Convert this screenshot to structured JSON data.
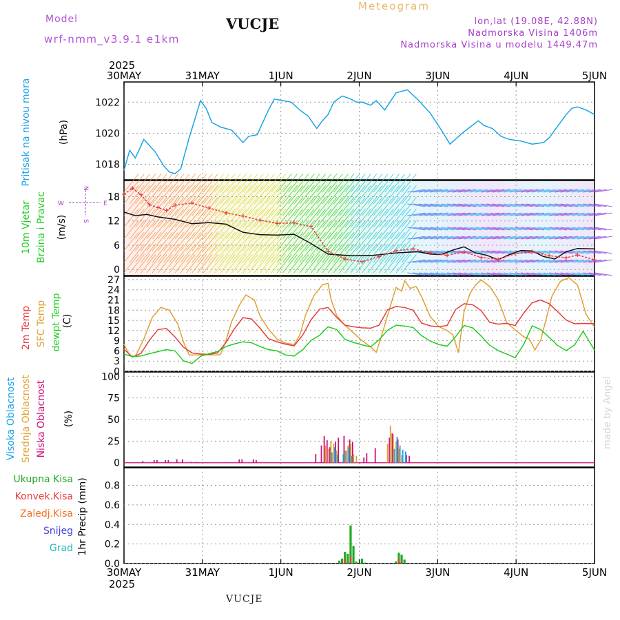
{
  "header": {
    "model_label": "Model",
    "model_version": "wrf-nmm_v3.9.1 e1km",
    "station": "VUCJE",
    "product": "Meteogram",
    "lonlat": "lon,lat (19.08E, 42.88N)",
    "elevation": "Nadmorska Visina 1406m",
    "model_elevation": "Nadmorska Visina u modelu 1449.47m"
  },
  "footer": {
    "station": "VUCJE"
  },
  "credit": "made by Angel",
  "colors": {
    "pressure": "#1aa3e6",
    "temp2m": "#e63c3c",
    "sfc": "#e0a030",
    "dewpt": "#22cc22",
    "high_cloud": "#1aa3e6",
    "mid_cloud": "#e0a030",
    "low_cloud": "#cc1177",
    "total_precip": "#22aa22",
    "conv_precip": "#e63c3c",
    "frozen_precip": "#f07020",
    "snow": "#4444dd",
    "hail": "#22bbbb",
    "wind_speed": "#111111",
    "wind_gust": "#e63c3c"
  },
  "time_axis": {
    "year": "2025",
    "ticks": [
      "30MAY",
      "31MAY",
      "1JUN",
      "2JUN",
      "3JUN",
      "4JUN",
      "5JUN"
    ]
  },
  "chart_data": [
    {
      "type": "line",
      "title": "",
      "ylabel": [
        "Pritisak na nivou mora",
        "(hPa)"
      ],
      "x_range": [
        "2025-05-30 00:00",
        "2025-06-05 00:00"
      ],
      "ylim": [
        1017.0,
        1023.3
      ],
      "yticks": [
        1018,
        1020,
        1022
      ],
      "grid": true,
      "series": [
        {
          "name": "Pritisak na nivou mora",
          "x": [
            0,
            2,
            4,
            7,
            11,
            14,
            16,
            18,
            20,
            23,
            27,
            29,
            31,
            34,
            38,
            42,
            44,
            47,
            51,
            53,
            56,
            59,
            62,
            65,
            68,
            70,
            72,
            74,
            77,
            80,
            82,
            84,
            87,
            89,
            92,
            96,
            100,
            104,
            108,
            112,
            115,
            120,
            125,
            127,
            130,
            133,
            136,
            140,
            144,
            148,
            150,
            154,
            156,
            158,
            160,
            163,
            166
          ],
          "values": [
            1017.6,
            1018.9,
            1018.4,
            1019.6,
            1018.8,
            1017.9,
            1017.5,
            1017.4,
            1017.7,
            1019.7,
            1022.1,
            1021.6,
            1020.7,
            1020.4,
            1020.2,
            1019.4,
            1019.8,
            1019.9,
            1021.5,
            1022.2,
            1022.1,
            1022.0,
            1021.5,
            1021.1,
            1020.3,
            1020.8,
            1021.2,
            1022.0,
            1022.4,
            1022.2,
            1022.0,
            1022.0,
            1021.8,
            1022.1,
            1021.5,
            1022.6,
            1022.8,
            1022.1,
            1021.3,
            1020.2,
            1019.3,
            1020.1,
            1020.8,
            1020.5,
            1020.3,
            1019.8,
            1019.6,
            1019.5,
            1019.3,
            1019.4,
            1019.7,
            1020.7,
            1021.2,
            1021.6,
            1021.7,
            1021.5,
            1021.2
          ]
        }
      ]
    },
    {
      "type": "line",
      "title": "",
      "ylabel": [
        "10m Vjetar",
        "Brzina i Pravac",
        "(m/s)"
      ],
      "compass_labels": [
        "N",
        "W",
        "E",
        "S"
      ],
      "x_range": [
        "2025-05-30 00:00",
        "2025-06-05 00:00"
      ],
      "ylim": [
        -1.5,
        22
      ],
      "yticks": [
        0,
        6,
        12,
        18
      ],
      "grid": true,
      "series": [
        {
          "name": "wind speed",
          "x": [
            0,
            4,
            8,
            12,
            18,
            24,
            30,
            36,
            42,
            48,
            54,
            60,
            66,
            72,
            80,
            88,
            96,
            104,
            108,
            112,
            116,
            120,
            124,
            128,
            132,
            136,
            140,
            144,
            148,
            152,
            156,
            160,
            166
          ],
          "values": [
            14.2,
            13.3,
            13.6,
            13.0,
            12.4,
            11.3,
            11.6,
            11.2,
            9.2,
            8.6,
            8.5,
            8.7,
            6.4,
            3.8,
            3.4,
            3.5,
            4.1,
            4.4,
            3.8,
            3.7,
            4.8,
            5.6,
            4.1,
            3.5,
            2.4,
            3.7,
            4.7,
            4.6,
            3.2,
            2.6,
            4.4,
            5.2,
            5.1
          ]
        },
        {
          "name": "wind gust",
          "x": [
            0,
            3,
            6,
            9,
            12,
            15,
            18,
            24,
            30,
            36,
            42,
            48,
            54,
            60,
            66,
            72,
            78,
            84,
            90,
            96,
            102,
            108,
            114,
            120,
            126,
            132,
            138,
            144,
            150,
            156,
            160,
            166
          ],
          "values": [
            18.6,
            20.1,
            18.5,
            16.0,
            15.3,
            14.6,
            15.9,
            16.4,
            15.2,
            14.0,
            13.2,
            12.2,
            11.4,
            11.5,
            10.6,
            4.5,
            2.6,
            1.9,
            3.2,
            4.6,
            5.1,
            4.1,
            3.5,
            4.3,
            3.0,
            2.5,
            3.9,
            4.4,
            3.4,
            2.9,
            3.6,
            2.4
          ]
        }
      ]
    },
    {
      "type": "line",
      "title": "",
      "ylabel": [
        "2m Temp",
        "SFC Temp",
        "dewpt Temp",
        "(C)"
      ],
      "x_range": [
        "2025-05-30 00:00",
        "2025-06-05 00:00"
      ],
      "ylim": [
        0,
        28
      ],
      "yticks": [
        0,
        3,
        6,
        9,
        12,
        15,
        18,
        21,
        24,
        27
      ],
      "grid": true,
      "series": [
        {
          "name": "2m Temp",
          "x": [
            0,
            3,
            6,
            9,
            12,
            15,
            18,
            21,
            24,
            27,
            30,
            33,
            36,
            39,
            42,
            45,
            48,
            51,
            54,
            57,
            60,
            63,
            66,
            69,
            72,
            75,
            78,
            81,
            84,
            87,
            90,
            93,
            96,
            99,
            102,
            105,
            108,
            111,
            114,
            117,
            120,
            123,
            126,
            129,
            132,
            135,
            138,
            141,
            144,
            147,
            150,
            153,
            156,
            159,
            162,
            166
          ],
          "values": [
            6.5,
            4.2,
            5.3,
            9.2,
            12.3,
            12.6,
            10.1,
            7.1,
            5.4,
            5.1,
            5.0,
            5.4,
            8.5,
            12.6,
            15.8,
            15.4,
            12.7,
            9.6,
            8.7,
            8.0,
            7.5,
            10.6,
            15.2,
            18.3,
            18.8,
            15.9,
            13.6,
            13.1,
            12.8,
            12.7,
            13.6,
            18.1,
            19.1,
            18.8,
            18.0,
            14.2,
            13.4,
            13.1,
            13.5,
            18.2,
            19.9,
            19.6,
            17.9,
            14.4,
            13.9,
            14.1,
            13.5,
            17.1,
            20.2,
            21.0,
            19.9,
            17.6,
            15.1,
            14.0,
            14.1,
            14.0
          ]
        },
        {
          "name": "SFC Temp",
          "x": [
            0,
            2,
            4,
            7,
            10,
            13,
            16,
            19,
            21,
            23,
            26,
            29,
            32,
            34,
            36,
            38,
            41,
            43,
            46,
            48,
            51,
            54,
            57,
            60,
            62,
            64,
            67,
            70,
            72,
            73,
            75,
            78,
            81,
            84,
            87,
            89,
            91,
            93,
            95,
            96,
            98,
            99,
            101,
            103,
            105,
            108,
            111,
            114,
            116,
            118,
            120,
            122,
            124,
            126,
            129,
            132,
            135,
            138,
            141,
            143,
            145,
            147,
            149,
            151,
            154,
            157,
            160,
            163,
            166
          ],
          "values": [
            8.0,
            4.6,
            4.4,
            9.5,
            15.9,
            18.8,
            18.0,
            13.9,
            8.6,
            4.8,
            4.8,
            4.8,
            4.8,
            4.9,
            9.1,
            14.7,
            19.9,
            22.5,
            21.0,
            16.3,
            12.4,
            9.5,
            8.3,
            7.9,
            10.6,
            16.4,
            22.3,
            25.5,
            25.9,
            21.3,
            16.5,
            13.5,
            11.3,
            9.0,
            7.2,
            5.6,
            10.8,
            16.4,
            22.1,
            24.7,
            23.6,
            26.7,
            24.4,
            25.0,
            22.0,
            16.2,
            13.2,
            12.0,
            10.8,
            5.5,
            17.6,
            22.8,
            25.4,
            26.9,
            25.0,
            21.2,
            14.4,
            12.2,
            10.2,
            9.5,
            6.3,
            9.1,
            15.6,
            22.2,
            26.5,
            27.6,
            25.4,
            16.8,
            13.0
          ]
        },
        {
          "name": "dewpt Temp",
          "x": [
            0,
            3,
            6,
            9,
            12,
            15,
            18,
            21,
            24,
            27,
            30,
            33,
            36,
            39,
            42,
            45,
            48,
            51,
            54,
            57,
            60,
            63,
            66,
            69,
            72,
            75,
            78,
            81,
            84,
            87,
            90,
            93,
            96,
            99,
            102,
            105,
            108,
            111,
            114,
            117,
            120,
            123,
            126,
            129,
            132,
            135,
            138,
            141,
            144,
            147,
            150,
            153,
            156,
            159,
            162,
            166
          ],
          "values": [
            5.1,
            4.3,
            4.5,
            5.2,
            5.8,
            6.4,
            6.0,
            3.1,
            2.3,
            4.4,
            5.2,
            5.8,
            7.3,
            8.1,
            8.7,
            8.4,
            7.3,
            6.4,
            6.0,
            4.8,
            4.5,
            6.3,
            9.1,
            10.6,
            13.1,
            12.3,
            9.4,
            8.5,
            7.8,
            7.2,
            9.3,
            12.1,
            13.6,
            13.3,
            12.9,
            10.5,
            8.9,
            7.9,
            7.4,
            10.2,
            13.5,
            12.8,
            10.4,
            7.7,
            6.1,
            5.1,
            4.0,
            7.9,
            13.4,
            12.3,
            10.0,
            7.6,
            6.1,
            7.8,
            11.8,
            6.2
          ]
        }
      ]
    },
    {
      "type": "bar",
      "title": "",
      "ylabel": [
        "Visoka Oblacnost",
        "Srednja Oblacnost",
        "Niska Oblacnost",
        "(%)"
      ],
      "x_range": [
        "2025-05-30 00:00",
        "2025-06-05 00:00"
      ],
      "ylim": [
        -5,
        105
      ],
      "yticks": [
        0,
        25,
        50,
        75,
        100
      ],
      "grid": true,
      "series": [
        {
          "name": "Niska Oblacnost",
          "x": [
            7,
            11,
            12,
            15,
            16,
            19,
            21,
            24,
            26,
            41,
            42,
            46,
            47,
            68,
            70,
            71,
            72,
            73,
            75,
            76,
            78,
            80,
            81,
            85,
            86,
            89,
            94,
            95,
            97,
            100,
            101
          ],
          "values": [
            2,
            3,
            3,
            3,
            3,
            4,
            4,
            1,
            1,
            4,
            4,
            4,
            3,
            10,
            20,
            31,
            26,
            18,
            24,
            29,
            31,
            27,
            24,
            6,
            11,
            17,
            29,
            34,
            27,
            9,
            8
          ]
        },
        {
          "name": "Srednja Oblacnost",
          "x": [
            71,
            72,
            73,
            74,
            75,
            78,
            79,
            80,
            81,
            82,
            93,
            94,
            95,
            96,
            97,
            98
          ],
          "values": [
            20,
            16,
            25,
            22,
            14,
            14,
            20,
            22,
            10,
            8,
            22,
            43,
            33,
            25,
            16,
            9
          ]
        },
        {
          "name": "Visoka Oblacnost",
          "x": [
            73,
            74,
            75,
            77,
            78,
            79,
            80,
            95,
            96,
            97,
            98,
            99
          ],
          "values": [
            12,
            18,
            9,
            10,
            14,
            18,
            8,
            16,
            30,
            20,
            15,
            13
          ]
        }
      ]
    },
    {
      "type": "bar",
      "title": "",
      "ylabel": [
        "1hr Precip (mm)"
      ],
      "legend": [
        "Ukupna Kisa",
        "Konvek.Kisa",
        "Zaledj.Kisa",
        "Snijeg",
        "Grad"
      ],
      "x_range": [
        "2025-05-30 00:00",
        "2025-06-05 00:00"
      ],
      "ylim": [
        0,
        0.98
      ],
      "yticks": [
        0.0,
        0.2,
        0.4,
        0.6,
        0.8
      ],
      "grid": true,
      "series": [
        {
          "name": "Ukupna Kisa",
          "x": [
            76,
            77,
            78,
            79,
            80,
            81,
            82,
            84,
            85,
            96,
            97,
            98,
            99
          ],
          "values": [
            0.03,
            0.05,
            0.12,
            0.1,
            0.39,
            0.18,
            0.02,
            0.05,
            0.01,
            0.02,
            0.11,
            0.09,
            0.04
          ]
        },
        {
          "name": "Konvek.Kisa",
          "x": [
            77,
            78,
            80,
            97,
            98
          ],
          "values": [
            0.02,
            0.05,
            0.08,
            0.05,
            0.03
          ]
        }
      ]
    }
  ]
}
